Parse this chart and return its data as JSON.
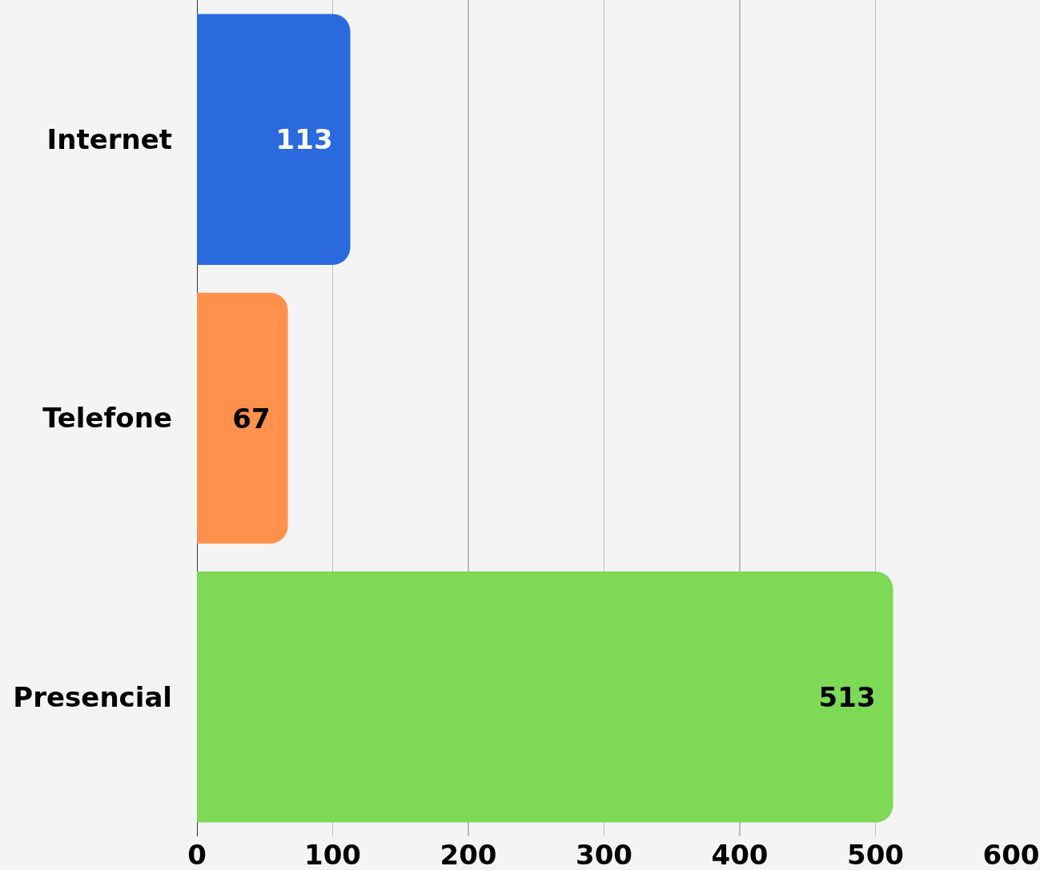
{
  "chart_data": {
    "type": "bar",
    "orientation": "horizontal",
    "categories": [
      "Internet",
      "Telefone",
      "Presencial"
    ],
    "values": [
      113,
      67,
      513
    ],
    "colors": [
      "#2a6ade",
      "#ff914d",
      "#7ed957"
    ],
    "xlim": [
      0,
      600
    ],
    "xticks": [
      0,
      100,
      200,
      300,
      400,
      500,
      600
    ],
    "grid": "x",
    "data_labels": true
  }
}
